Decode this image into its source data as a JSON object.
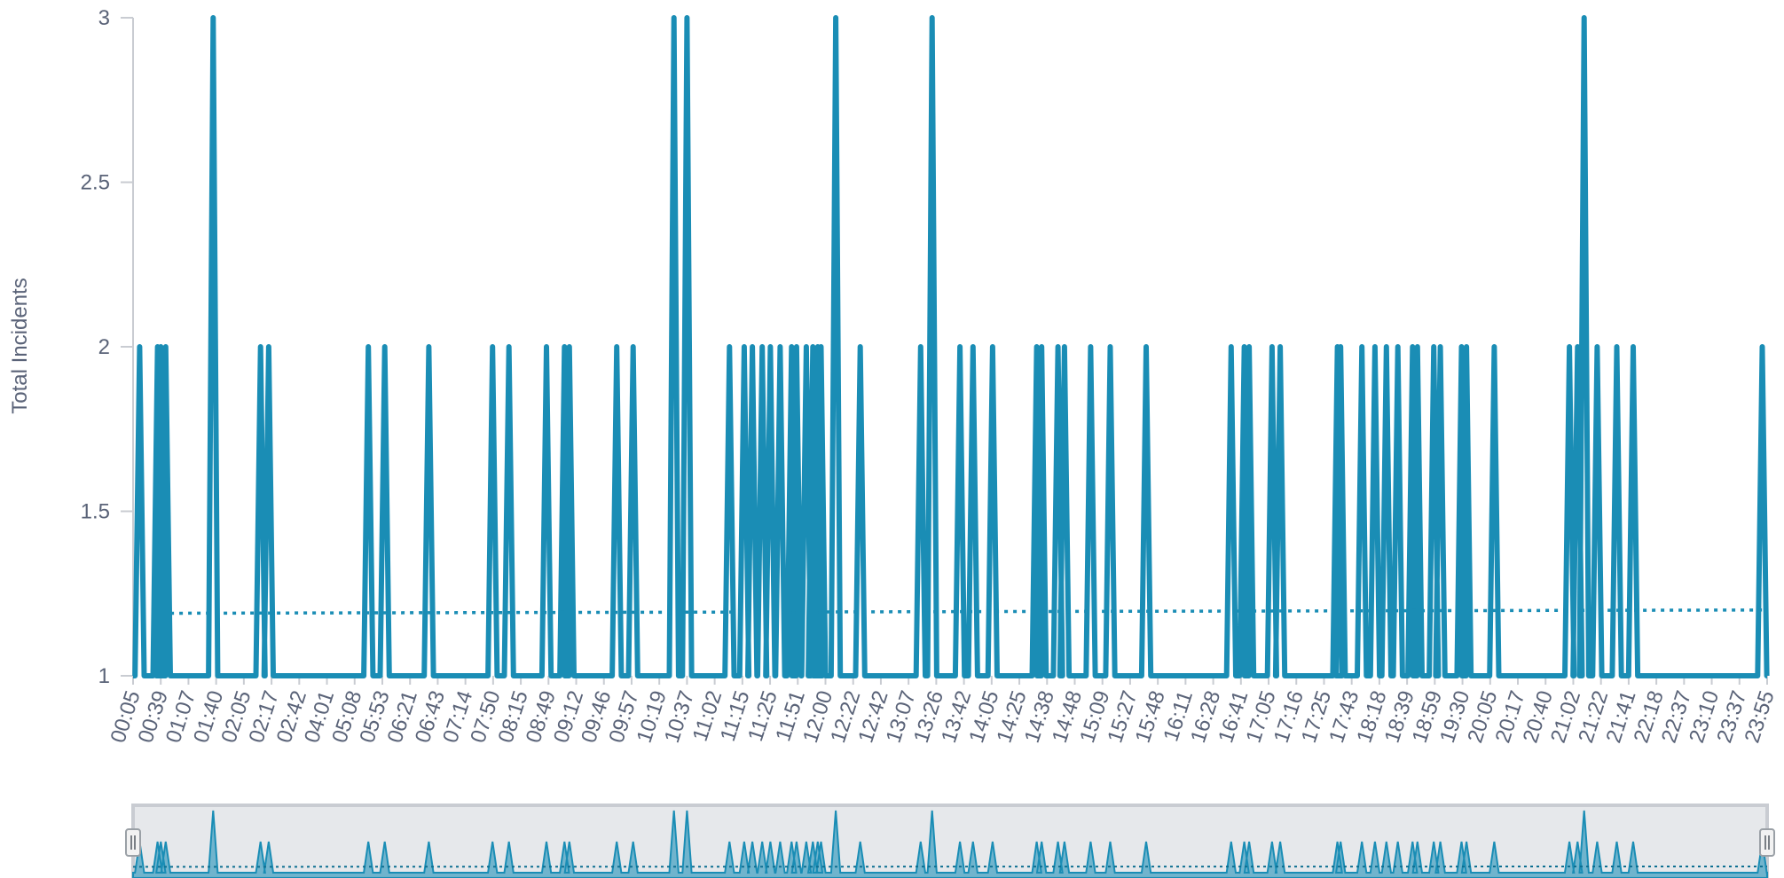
{
  "chart_data": {
    "type": "line",
    "title": "",
    "ylabel": "Total Incidents",
    "xlabel": "",
    "ylim": [
      1,
      3
    ],
    "yticks": [
      "1",
      "1.5",
      "2",
      "2.5",
      "3"
    ],
    "x_tick_labels": [
      "00:05",
      "00:39",
      "01:07",
      "01:40",
      "02:05",
      "02:17",
      "02:42",
      "04:01",
      "05:08",
      "05:53",
      "06:21",
      "06:43",
      "07:14",
      "07:50",
      "08:15",
      "08:49",
      "09:12",
      "09:46",
      "09:57",
      "10:19",
      "10:37",
      "11:02",
      "11:15",
      "11:25",
      "11:51",
      "12:00",
      "12:22",
      "12:42",
      "13:07",
      "13:26",
      "13:42",
      "14:05",
      "14:25",
      "14:38",
      "14:48",
      "15:09",
      "15:27",
      "15:48",
      "16:11",
      "16:28",
      "16:41",
      "17:05",
      "17:16",
      "17:25",
      "17:43",
      "18:18",
      "18:39",
      "18:59",
      "19:30",
      "20:05",
      "20:17",
      "20:40",
      "21:02",
      "21:22",
      "21:41",
      "22:18",
      "22:37",
      "23:10",
      "23:37",
      "23:55"
    ],
    "series": [
      {
        "color": "#1a8db5",
        "spikes": [
          {
            "x": 0.4,
            "y": 2
          },
          {
            "x": 1.5,
            "y": 2
          },
          {
            "x": 1.7,
            "y": 2
          },
          {
            "x": 2.0,
            "y": 2
          },
          {
            "x": 4.9,
            "y": 3
          },
          {
            "x": 7.8,
            "y": 2
          },
          {
            "x": 8.3,
            "y": 2
          },
          {
            "x": 14.4,
            "y": 2
          },
          {
            "x": 15.4,
            "y": 2
          },
          {
            "x": 18.1,
            "y": 2
          },
          {
            "x": 22.0,
            "y": 2
          },
          {
            "x": 23.0,
            "y": 2
          },
          {
            "x": 25.3,
            "y": 2
          },
          {
            "x": 26.4,
            "y": 2
          },
          {
            "x": 26.7,
            "y": 2
          },
          {
            "x": 29.6,
            "y": 2
          },
          {
            "x": 30.6,
            "y": 2
          },
          {
            "x": 33.1,
            "y": 3
          },
          {
            "x": 33.9,
            "y": 3
          },
          {
            "x": 36.5,
            "y": 2
          },
          {
            "x": 37.4,
            "y": 2
          },
          {
            "x": 37.9,
            "y": 2
          },
          {
            "x": 38.5,
            "y": 2
          },
          {
            "x": 39.0,
            "y": 2
          },
          {
            "x": 39.6,
            "y": 2
          },
          {
            "x": 40.3,
            "y": 2
          },
          {
            "x": 40.6,
            "y": 2
          },
          {
            "x": 41.2,
            "y": 2
          },
          {
            "x": 41.6,
            "y": 2
          },
          {
            "x": 41.9,
            "y": 2
          },
          {
            "x": 42.1,
            "y": 2
          },
          {
            "x": 43.0,
            "y": 3
          },
          {
            "x": 44.5,
            "y": 2
          },
          {
            "x": 48.2,
            "y": 2
          },
          {
            "x": 48.9,
            "y": 3
          },
          {
            "x": 50.6,
            "y": 2
          },
          {
            "x": 51.4,
            "y": 2
          },
          {
            "x": 52.6,
            "y": 2
          },
          {
            "x": 55.3,
            "y": 2
          },
          {
            "x": 55.6,
            "y": 2
          },
          {
            "x": 56.6,
            "y": 2
          },
          {
            "x": 57.0,
            "y": 2
          },
          {
            "x": 58.6,
            "y": 2
          },
          {
            "x": 59.8,
            "y": 2
          },
          {
            "x": 62.0,
            "y": 2
          },
          {
            "x": 67.2,
            "y": 2
          },
          {
            "x": 68.0,
            "y": 2
          },
          {
            "x": 68.3,
            "y": 2
          },
          {
            "x": 69.7,
            "y": 2
          },
          {
            "x": 70.2,
            "y": 2
          },
          {
            "x": 73.7,
            "y": 2
          },
          {
            "x": 73.9,
            "y": 2
          },
          {
            "x": 75.2,
            "y": 2
          },
          {
            "x": 76.0,
            "y": 2
          },
          {
            "x": 76.7,
            "y": 2
          },
          {
            "x": 77.4,
            "y": 2
          },
          {
            "x": 78.3,
            "y": 2
          },
          {
            "x": 78.6,
            "y": 2
          },
          {
            "x": 79.6,
            "y": 2
          },
          {
            "x": 80.0,
            "y": 2
          },
          {
            "x": 81.3,
            "y": 2
          },
          {
            "x": 81.6,
            "y": 2
          },
          {
            "x": 83.3,
            "y": 2
          },
          {
            "x": 87.9,
            "y": 2
          },
          {
            "x": 88.4,
            "y": 2
          },
          {
            "x": 88.8,
            "y": 3
          },
          {
            "x": 89.6,
            "y": 2
          },
          {
            "x": 90.8,
            "y": 2
          },
          {
            "x": 91.8,
            "y": 2
          },
          {
            "x": 99.7,
            "y": 2
          }
        ],
        "trend": {
          "y_start": 1.19,
          "y_end": 1.2
        }
      }
    ],
    "navigator": {
      "present": true
    },
    "grid": false
  }
}
